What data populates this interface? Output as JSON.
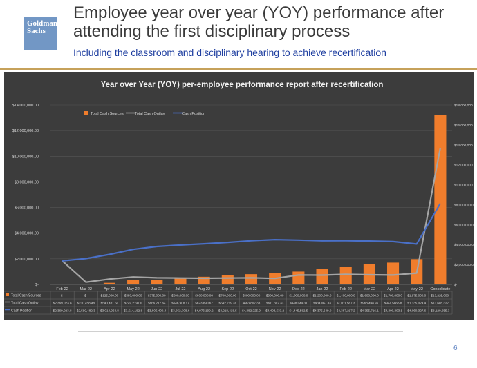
{
  "slide": {
    "logo_line1": "Goldman",
    "logo_line2": "Sachs",
    "title": "Employee year over year (YOY) performance after attending the first disciplinary process",
    "subtitle": "Including the classroom and disciplinary hearing to achieve recertification",
    "page_number": "6"
  },
  "colors": {
    "background": "#3c3c3c",
    "bar": "#f07d2c",
    "outlay": "#a5a5a5",
    "position": "#4a70c8",
    "text": "#d9d9d9"
  },
  "chart_data": {
    "type": "bar",
    "title": "Year over Year (YOY) per-employee performance report after recertification",
    "categories": [
      "Feb-22",
      "Mar-22",
      "Apr-22",
      "May-22",
      "Jun-22",
      "Jul-22",
      "Aug-22",
      "Sep-22",
      "Oct-22",
      "Nov-22",
      "Dec-22",
      "Jan-22",
      "Feb-22",
      "Mar-22",
      "Apr-22",
      "May-22",
      "Consolidate"
    ],
    "ylim": [
      0,
      14000000
    ],
    "y2lim": [
      0,
      18000000
    ],
    "left_ticks": [
      "$-",
      "$2,000,000.00",
      "$4,000,000.00",
      "$6,000,000.00",
      "$8,000,000.00",
      "$10,000,000.00",
      "$12,000,000.00",
      "$14,000,000.00"
    ],
    "right_ticks": [
      "$-",
      "$2,000,000.00",
      "$4,000,000.00",
      "$6,000,000.00",
      "$8,000,000.00",
      "$10,000,000.00",
      "$12,000,000.00",
      "$14,000,000.00",
      "$16,000,000.00",
      "$18,000,000.00"
    ],
    "series": [
      {
        "name": "Total Cash Sources",
        "kind": "bar",
        "axis": "left",
        "values": [
          0,
          0,
          125000,
          350000,
          375000,
          500000,
          600000,
          700000,
          800000,
          900000,
          1000000,
          1200000,
          1400000,
          1600000,
          1700000,
          1975000,
          13225000
        ],
        "labels": [
          "$-",
          "$-",
          "$125,000.00",
          "$350,000.00",
          "$375,000.00",
          "$500,000.00",
          "$600,000.00",
          "$700,000.00",
          "$800,000.00",
          "$900,000.00",
          "$1,000,000.0",
          "$1,200,000.0",
          "$1,400,000.0",
          "$1,600,000.0",
          "$1,700,000.0",
          "$1,975,000.0",
          "$13,225,000."
        ]
      },
      {
        "name": "Total Cash Outlay",
        "kind": "line",
        "axis": "right",
        "values": [
          2369023.8,
          230458.48,
          540481.5,
          749219,
          666217.64,
          646908.17,
          623890.67,
          642219.31,
          663807.33,
          611307.33,
          948049.31,
          934067.33,
          1011567.3,
          968498.96,
          944586.98,
          1135024.4,
          13685327
        ],
        "labels": [
          "$2,369,023.8",
          "$230,458.48",
          "$540,481.50",
          "$749,219.00",
          "$666,217.64",
          "$646,908.17",
          "$623,890.67",
          "$642,219.31",
          "$663,807.33",
          "$611,307.33",
          "$948,049.31",
          "$934,067.33",
          "$1,011,567.3",
          "$968,498.96",
          "$944,586.98",
          "$1,135,024.4",
          "$13,685,327."
        ]
      },
      {
        "name": "Cash Position",
        "kind": "line",
        "axis": "right",
        "values": [
          2369023.8,
          2599482.3,
          3014963.8,
          3514182.8,
          3805400.4,
          3952308.6,
          4076199.2,
          4218418.5,
          4382225.9,
          4493533.2,
          4445582.5,
          4375649.9,
          4387217.2,
          4355716.1,
          4300303.1,
          4060327.6,
          8120655.3
        ],
        "labels": [
          "$2,369,023.8",
          "$2,599,482.3",
          "$3,014,963.8",
          "$3,514,182.8",
          "$3,805,400.4",
          "$3,952,308.6",
          "$4,076,199.2",
          "$4,218,418.5",
          "$4,382,225.9",
          "$4,493,533.2",
          "$4,445,582.5",
          "$4,375,649.9",
          "$4,387,217.2",
          "$4,355,716.1",
          "$4,300,303.1",
          "$4,060,327.6",
          "$8,120,655.3"
        ]
      }
    ],
    "legend_position": "top-center"
  }
}
